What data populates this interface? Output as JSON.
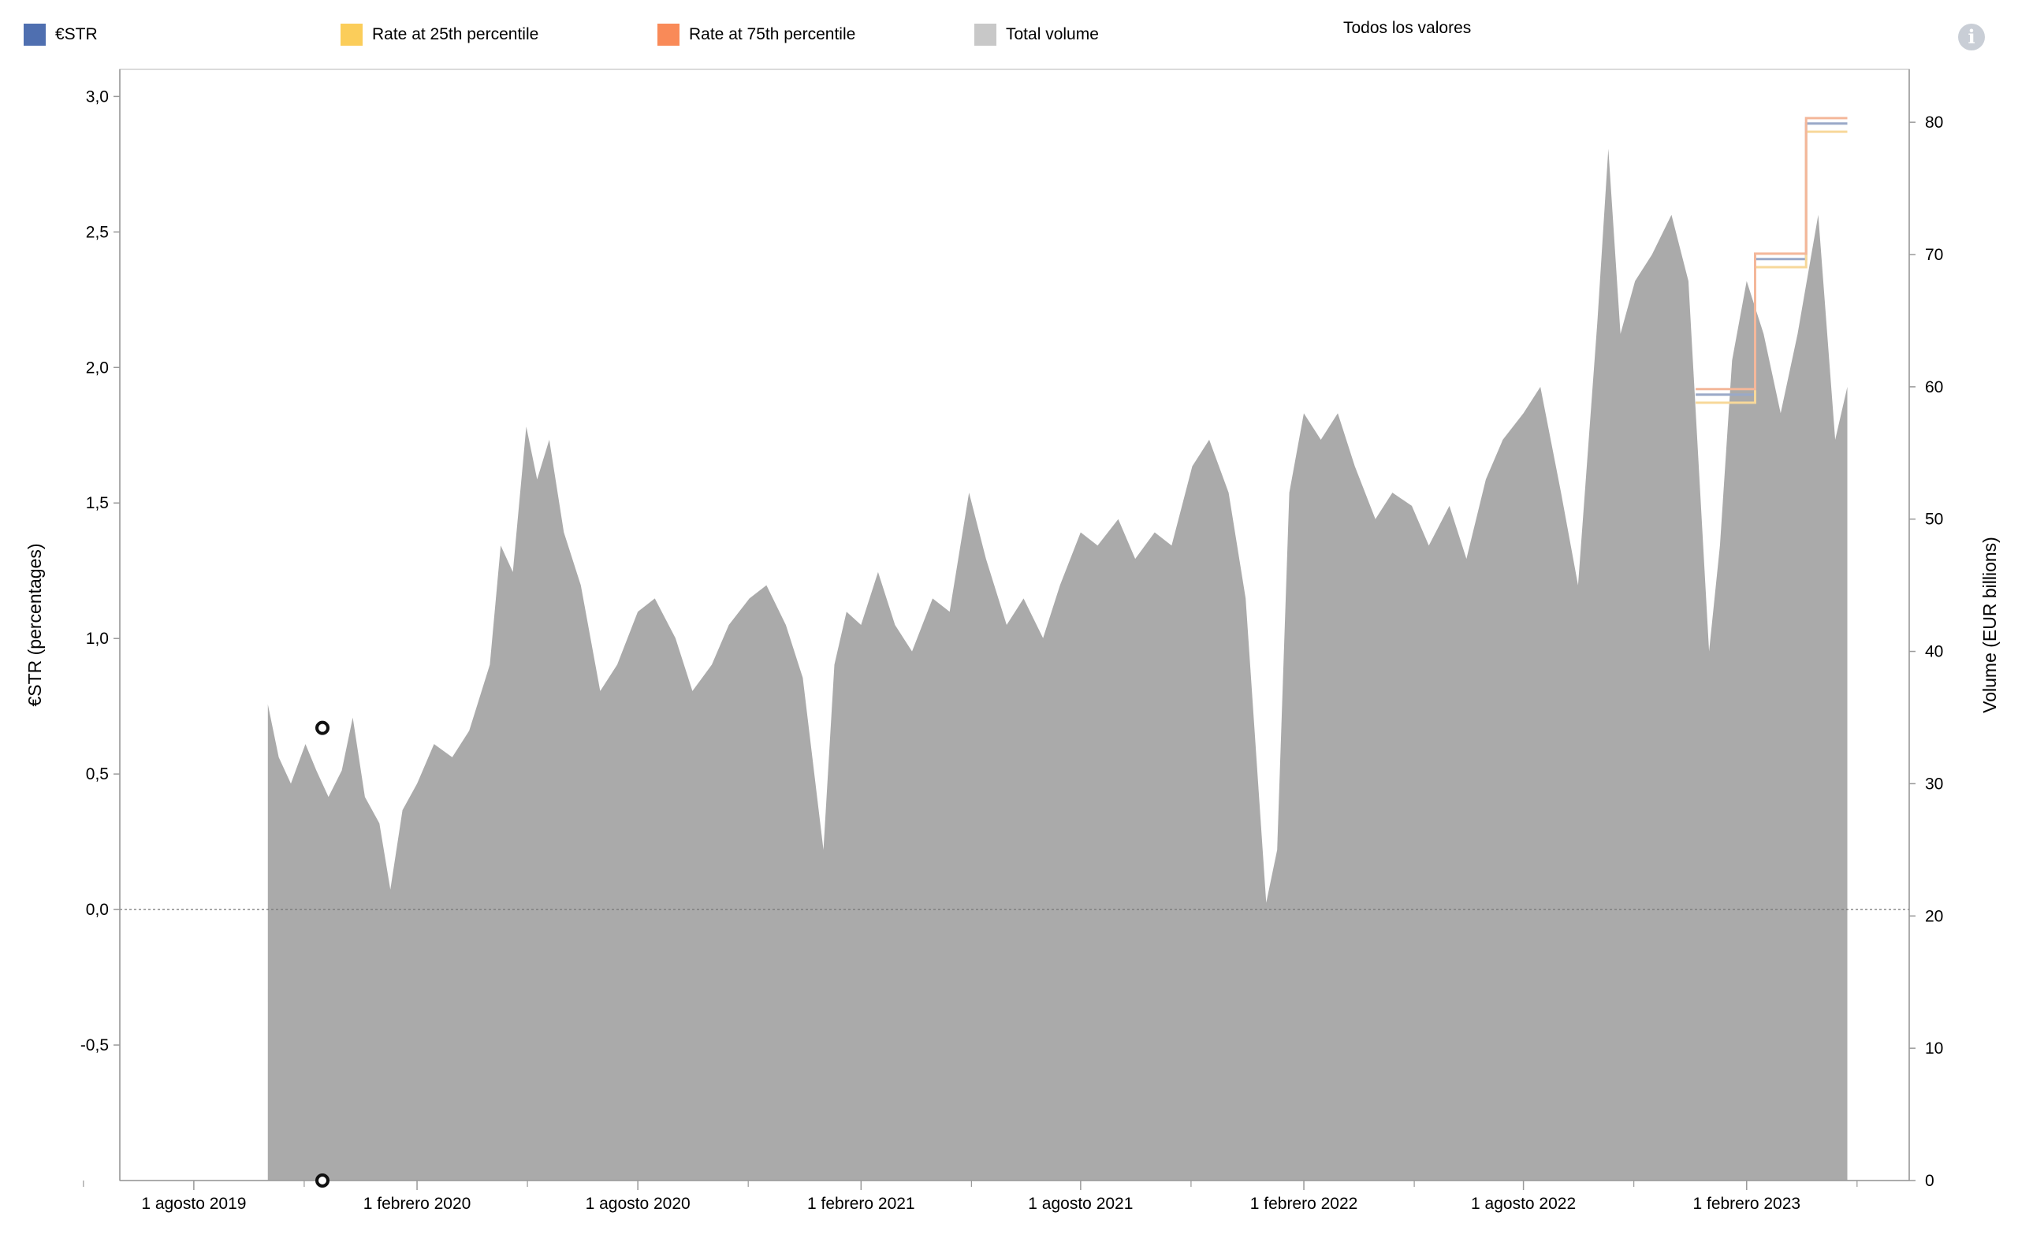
{
  "legend": {
    "items": [
      {
        "label": "€STR",
        "color": "#4f6fb0"
      },
      {
        "label": "Rate at 25th percentile",
        "color": "#fbcd5a"
      },
      {
        "label": "Rate at 75th percentile",
        "color": "#f98a58"
      },
      {
        "label": "Total volume",
        "color": "#c8c8c8"
      }
    ]
  },
  "filter": {
    "label": "Todos los valores"
  },
  "info_icon": "info-icon",
  "chart_data": {
    "type": "area",
    "title": "",
    "ylabel": "€STR (percentages)",
    "y2label": "Volume (EUR billions)",
    "ylim": [
      -1.0,
      3.1
    ],
    "y2lim": [
      0,
      84
    ],
    "y_ticks": [
      "3,0",
      "2,5",
      "2,0",
      "1,5",
      "1,0",
      "0,5",
      "0,0",
      "-0,5"
    ],
    "y_tick_values": [
      3.0,
      2.5,
      2.0,
      1.5,
      1.0,
      0.5,
      0.0,
      -0.5
    ],
    "y2_ticks": [
      "80",
      "70",
      "60",
      "50",
      "40",
      "30",
      "20",
      "10",
      "0"
    ],
    "y2_tick_values": [
      80,
      70,
      60,
      50,
      40,
      30,
      20,
      10,
      0
    ],
    "x_ticks": [
      "1 agosto 2019",
      "1 febrero 2020",
      "1 agosto 2020",
      "1 febrero 2021",
      "1 agosto 2021",
      "1 febrero 2022",
      "1 agosto 2022",
      "1 febrero 2023"
    ],
    "x_tick_dates": [
      "2019-08-01",
      "2020-02-01",
      "2020-08-01",
      "2021-02-01",
      "2021-08-01",
      "2022-02-01",
      "2022-08-01",
      "2023-02-01"
    ],
    "xlim": [
      "2019-06-01",
      "2023-06-15"
    ],
    "legend_position": "top",
    "grid": false,
    "zero_line": true,
    "series": [
      {
        "name": "Total volume",
        "axis": "right",
        "color": "#aaaaaa",
        "points": [
          [
            "2019-10-01",
            36
          ],
          [
            "2019-10-10",
            32
          ],
          [
            "2019-10-20",
            30
          ],
          [
            "2019-11-01",
            33
          ],
          [
            "2019-11-10",
            31
          ],
          [
            "2019-11-20",
            29
          ],
          [
            "2019-12-01",
            31
          ],
          [
            "2019-12-10",
            35
          ],
          [
            "2019-12-20",
            29
          ],
          [
            "2020-01-01",
            27
          ],
          [
            "2020-01-10",
            22
          ],
          [
            "2020-01-20",
            28
          ],
          [
            "2020-02-01",
            30
          ],
          [
            "2020-02-15",
            33
          ],
          [
            "2020-03-01",
            32
          ],
          [
            "2020-03-15",
            34
          ],
          [
            "2020-04-01",
            39
          ],
          [
            "2020-04-10",
            48
          ],
          [
            "2020-04-20",
            46
          ],
          [
            "2020-05-01",
            57
          ],
          [
            "2020-05-10",
            53
          ],
          [
            "2020-05-20",
            56
          ],
          [
            "2020-06-01",
            49
          ],
          [
            "2020-06-15",
            45
          ],
          [
            "2020-07-01",
            37
          ],
          [
            "2020-07-15",
            39
          ],
          [
            "2020-08-01",
            43
          ],
          [
            "2020-08-15",
            44
          ],
          [
            "2020-09-01",
            41
          ],
          [
            "2020-09-15",
            37
          ],
          [
            "2020-10-01",
            39
          ],
          [
            "2020-10-15",
            42
          ],
          [
            "2020-11-01",
            44
          ],
          [
            "2020-11-15",
            45
          ],
          [
            "2020-12-01",
            42
          ],
          [
            "2020-12-15",
            38
          ],
          [
            "2021-01-01",
            25
          ],
          [
            "2021-01-10",
            39
          ],
          [
            "2021-01-20",
            43
          ],
          [
            "2021-02-01",
            42
          ],
          [
            "2021-02-15",
            46
          ],
          [
            "2021-03-01",
            42
          ],
          [
            "2021-03-15",
            40
          ],
          [
            "2021-04-01",
            44
          ],
          [
            "2021-04-15",
            43
          ],
          [
            "2021-05-01",
            52
          ],
          [
            "2021-05-15",
            47
          ],
          [
            "2021-06-01",
            42
          ],
          [
            "2021-06-15",
            44
          ],
          [
            "2021-07-01",
            41
          ],
          [
            "2021-07-15",
            45
          ],
          [
            "2021-08-01",
            49
          ],
          [
            "2021-08-15",
            48
          ],
          [
            "2021-09-01",
            50
          ],
          [
            "2021-09-15",
            47
          ],
          [
            "2021-10-01",
            49
          ],
          [
            "2021-10-15",
            48
          ],
          [
            "2021-11-01",
            54
          ],
          [
            "2021-11-15",
            56
          ],
          [
            "2021-12-01",
            52
          ],
          [
            "2021-12-15",
            44
          ],
          [
            "2022-01-01",
            21
          ],
          [
            "2022-01-10",
            25
          ],
          [
            "2022-01-20",
            52
          ],
          [
            "2022-02-01",
            58
          ],
          [
            "2022-02-15",
            56
          ],
          [
            "2022-03-01",
            58
          ],
          [
            "2022-03-15",
            54
          ],
          [
            "2022-04-01",
            50
          ],
          [
            "2022-04-15",
            52
          ],
          [
            "2022-05-01",
            51
          ],
          [
            "2022-05-15",
            48
          ],
          [
            "2022-06-01",
            51
          ],
          [
            "2022-06-15",
            47
          ],
          [
            "2022-07-01",
            53
          ],
          [
            "2022-07-15",
            56
          ],
          [
            "2022-08-01",
            58
          ],
          [
            "2022-08-15",
            60
          ],
          [
            "2022-09-01",
            52
          ],
          [
            "2022-09-15",
            45
          ],
          [
            "2022-10-01",
            65
          ],
          [
            "2022-10-10",
            78
          ],
          [
            "2022-10-20",
            64
          ],
          [
            "2022-11-01",
            68
          ],
          [
            "2022-11-15",
            70
          ],
          [
            "2022-12-01",
            73
          ],
          [
            "2022-12-15",
            68
          ],
          [
            "2023-01-01",
            40
          ],
          [
            "2023-01-10",
            48
          ],
          [
            "2023-01-20",
            62
          ],
          [
            "2023-02-01",
            68
          ],
          [
            "2023-02-15",
            64
          ],
          [
            "2023-03-01",
            58
          ],
          [
            "2023-03-15",
            64
          ],
          [
            "2023-04-01",
            73
          ],
          [
            "2023-04-15",
            56
          ],
          [
            "2023-04-25",
            60
          ]
        ]
      },
      {
        "name": "€STR",
        "axis": "left",
        "color": "#9aa9c8",
        "points": [
          [
            "2022-12-21",
            1.9
          ],
          [
            "2023-02-08",
            1.9
          ],
          [
            "2023-02-08",
            2.4
          ],
          [
            "2023-03-22",
            2.4
          ],
          [
            "2023-03-22",
            2.9
          ],
          [
            "2023-04-25",
            2.9
          ]
        ]
      },
      {
        "name": "Rate at 25th percentile",
        "axis": "left",
        "color": "#f7d89a",
        "points": [
          [
            "2022-12-21",
            1.87
          ],
          [
            "2023-02-08",
            1.87
          ],
          [
            "2023-02-08",
            2.37
          ],
          [
            "2023-03-22",
            2.37
          ],
          [
            "2023-03-22",
            2.87
          ],
          [
            "2023-04-25",
            2.87
          ]
        ]
      },
      {
        "name": "Rate at 75th percentile",
        "axis": "left",
        "color": "#f4b79a",
        "points": [
          [
            "2022-12-21",
            1.92
          ],
          [
            "2023-02-08",
            1.92
          ],
          [
            "2023-02-08",
            2.42
          ],
          [
            "2023-03-22",
            2.42
          ],
          [
            "2023-03-22",
            2.92
          ],
          [
            "2023-04-25",
            2.92
          ]
        ]
      }
    ],
    "highlight_date": "2019-11-15",
    "highlight_value": 0.67
  }
}
